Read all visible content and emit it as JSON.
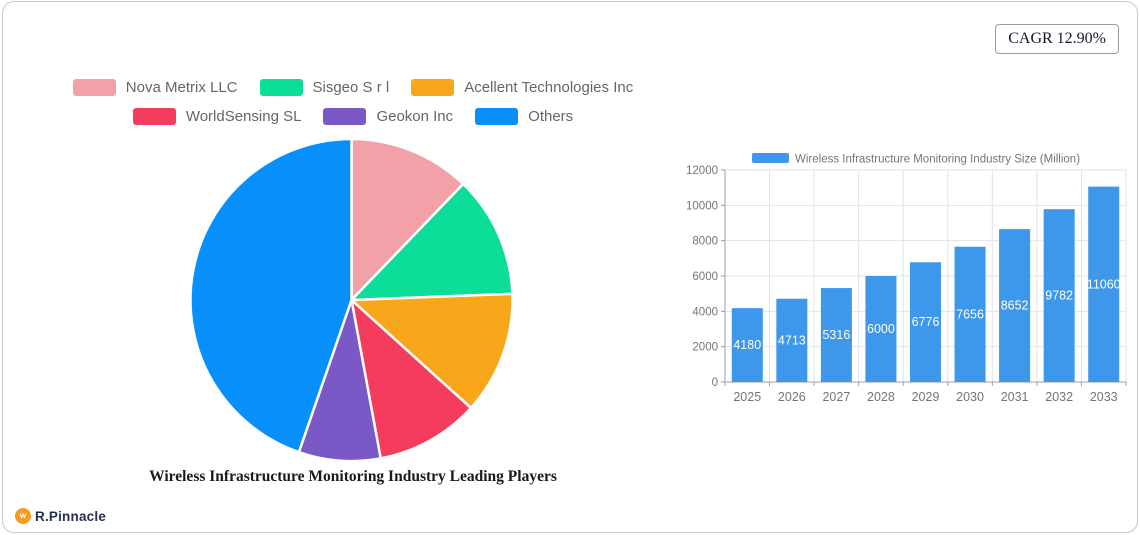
{
  "card": {
    "cagr_label": "CAGR 12.90%",
    "brand": {
      "name": "R.Pinnacle",
      "icon_letter": "w",
      "icon_color": "#f59c23",
      "text_color": "#25304a"
    }
  },
  "chart_data": [
    {
      "type": "pie",
      "title": "Wireless Infrastructure Monitoring Industry Leading Players",
      "legend_position": "top",
      "start_angle": "12-o-clock",
      "direction": "clockwise",
      "slices": [
        {
          "label": "Nova Metrix LLC",
          "value_pct": 12.2,
          "color": "#f2a1a9"
        },
        {
          "label": "Sisgeo S r l",
          "value_pct": 12.2,
          "color": "#0cdd98"
        },
        {
          "label": "Acellent Technologies Inc",
          "value_pct": 12.3,
          "color": "#f8a71b"
        },
        {
          "label": "WorldSensing SL",
          "value_pct": 10.4,
          "color": "#f43d5d"
        },
        {
          "label": "Geokon Inc",
          "value_pct": 8.2,
          "color": "#7a58c6"
        },
        {
          "label": "Others",
          "value_pct": 44.7,
          "color": "#078ffb"
        }
      ]
    },
    {
      "type": "bar",
      "legend_label": "Wireless Infrastructure Monitoring Industry Size (Million)",
      "categories": [
        "2025",
        "2026",
        "2027",
        "2028",
        "2029",
        "2030",
        "2031",
        "2032",
        "2033"
      ],
      "values": [
        4180,
        4713,
        5316,
        6000,
        6776,
        7656,
        8652,
        9782,
        11060
      ],
      "bar_color": "#3d97ea",
      "value_label_color": "#ffffff",
      "ylim": [
        0,
        12000
      ],
      "y_ticks": [
        0,
        2000,
        4000,
        6000,
        8000,
        10000,
        12000
      ],
      "grid": true,
      "axis_color": "#999fa8",
      "grid_color": "#e2e2e8",
      "tick_label_color": "#757575",
      "legend_text_color": "#757575"
    }
  ]
}
